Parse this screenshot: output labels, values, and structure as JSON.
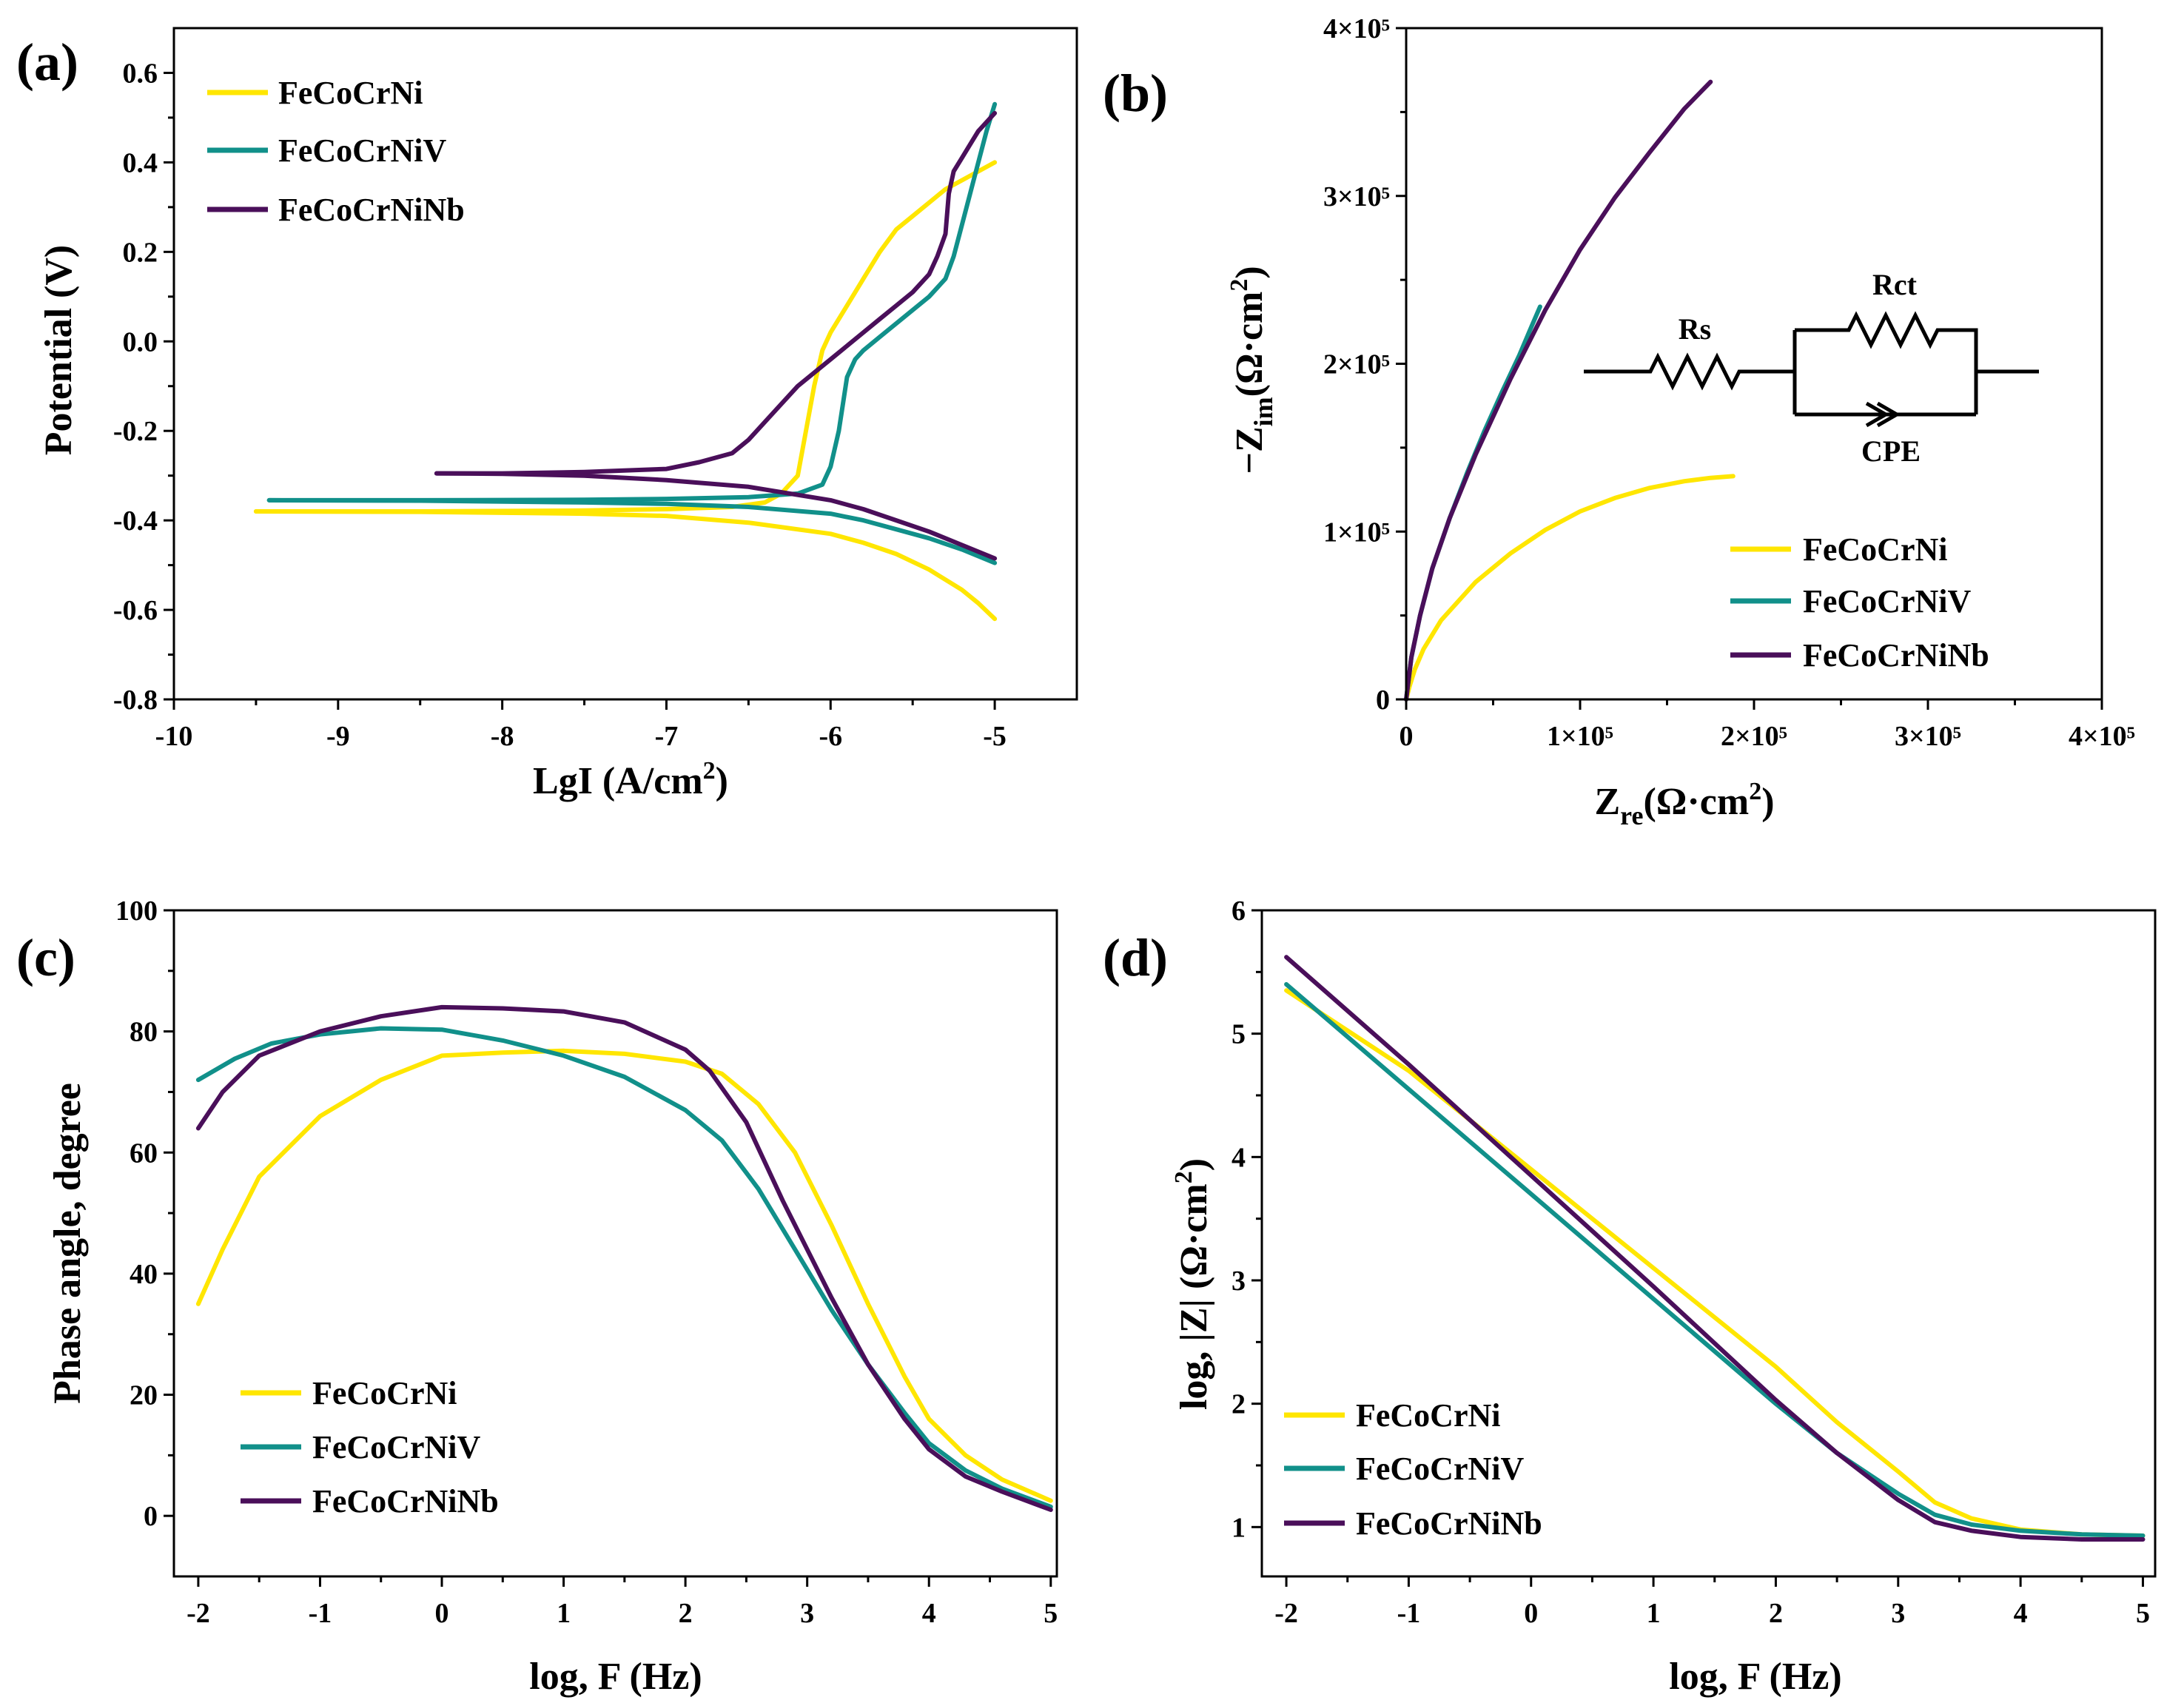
{
  "colors": {
    "FeCoCrNi": "#FFE600",
    "FeCoCrNiV": "#11908A",
    "FeCoCrNiNb": "#4A0F5A",
    "axis": "#000000"
  },
  "chart_data": [
    {
      "id": "a",
      "panel_label": "(a)",
      "type": "line",
      "xlabel": "LgI (A/cm²)",
      "ylabel": "Potential (V)",
      "xlim": [
        -10,
        -4.5
      ],
      "ylim": [
        -0.8,
        0.7
      ],
      "xticks": [
        -10,
        -9,
        -8,
        -7,
        -6,
        -5
      ],
      "yticks": [
        -0.8,
        -0.6,
        -0.4,
        -0.2,
        0.0,
        0.2,
        0.4,
        0.6
      ],
      "xticklabels": [
        "-10",
        "-9",
        "-8",
        "-7",
        "-6",
        "-5"
      ],
      "yticklabels": [
        "-0.8",
        "-0.6",
        "-0.4",
        "-0.2",
        "0.0",
        "0.2",
        "0.4",
        "0.6"
      ],
      "legend": "top-left",
      "series": [
        {
          "name": "FeCoCrNi",
          "x": [
            -9.5,
            -8.5,
            -7.5,
            -7.0,
            -6.6,
            -6.4,
            -6.3,
            -6.2,
            -6.15,
            -6.1,
            -6.05,
            -6.0,
            -5.9,
            -5.8,
            -5.7,
            -5.6,
            -5.5,
            -5.4,
            -5.3,
            -5.2,
            -5.1,
            -5.0
          ],
          "y": [
            -0.38,
            -0.38,
            -0.378,
            -0.375,
            -0.37,
            -0.36,
            -0.34,
            -0.3,
            -0.2,
            -0.1,
            -0.02,
            0.02,
            0.08,
            0.14,
            0.2,
            0.25,
            0.28,
            0.31,
            0.34,
            0.36,
            0.38,
            0.4
          ]
        },
        {
          "name": "FeCoCrNi",
          "x": [
            -9.5,
            -8.5,
            -7.5,
            -7.0,
            -6.5,
            -6.0,
            -5.8,
            -5.6,
            -5.4,
            -5.2,
            -5.1,
            -5.0
          ],
          "y": [
            -0.38,
            -0.381,
            -0.385,
            -0.39,
            -0.405,
            -0.43,
            -0.45,
            -0.475,
            -0.51,
            -0.555,
            -0.585,
            -0.62
          ]
        },
        {
          "name": "FeCoCrNiV",
          "x": [
            -9.42,
            -8.5,
            -7.5,
            -7.0,
            -6.5,
            -6.2,
            -6.05,
            -6.0,
            -5.95,
            -5.9,
            -5.85,
            -5.8,
            -5.7,
            -5.6,
            -5.5,
            -5.4,
            -5.35,
            -5.3,
            -5.25,
            -5.2,
            -5.15,
            -5.1,
            -5.05,
            -5.0
          ],
          "y": [
            -0.355,
            -0.355,
            -0.354,
            -0.352,
            -0.348,
            -0.34,
            -0.32,
            -0.28,
            -0.2,
            -0.08,
            -0.04,
            -0.02,
            0.01,
            0.04,
            0.07,
            0.1,
            0.12,
            0.14,
            0.19,
            0.26,
            0.33,
            0.4,
            0.47,
            0.53
          ]
        },
        {
          "name": "FeCoCrNiV",
          "x": [
            -9.42,
            -8.5,
            -7.5,
            -7.0,
            -6.5,
            -6.0,
            -5.8,
            -5.6,
            -5.4,
            -5.2,
            -5.0
          ],
          "y": [
            -0.355,
            -0.356,
            -0.36,
            -0.363,
            -0.37,
            -0.385,
            -0.4,
            -0.42,
            -0.44,
            -0.465,
            -0.495
          ]
        },
        {
          "name": "FeCoCrNiNb",
          "x": [
            -8.4,
            -8.0,
            -7.5,
            -7.0,
            -6.8,
            -6.6,
            -6.5,
            -6.4,
            -6.3,
            -6.2,
            -6.1,
            -6.0,
            -5.9,
            -5.8,
            -5.7,
            -5.6,
            -5.5,
            -5.4,
            -5.35,
            -5.3,
            -5.28,
            -5.25,
            -5.2,
            -5.15,
            -5.1,
            -5.0
          ],
          "y": [
            -0.295,
            -0.295,
            -0.292,
            -0.285,
            -0.27,
            -0.25,
            -0.22,
            -0.18,
            -0.14,
            -0.1,
            -0.07,
            -0.04,
            -0.01,
            0.02,
            0.05,
            0.08,
            0.11,
            0.15,
            0.19,
            0.24,
            0.33,
            0.38,
            0.41,
            0.44,
            0.47,
            0.51
          ]
        },
        {
          "name": "FeCoCrNiNb",
          "x": [
            -8.4,
            -8.0,
            -7.5,
            -7.0,
            -6.5,
            -6.0,
            -5.8,
            -5.6,
            -5.4,
            -5.2,
            -5.0
          ],
          "y": [
            -0.295,
            -0.296,
            -0.3,
            -0.31,
            -0.325,
            -0.355,
            -0.375,
            -0.4,
            -0.425,
            -0.455,
            -0.485
          ]
        }
      ]
    },
    {
      "id": "b",
      "panel_label": "(b)",
      "type": "line",
      "xlabel": "Zre(Ω·cm²)",
      "ylabel": "−Zim(Ω·cm²)",
      "xlim": [
        0,
        400000
      ],
      "ylim": [
        0,
        400000
      ],
      "xticks": [
        0,
        100000,
        200000,
        300000,
        400000
      ],
      "yticks": [
        0,
        100000,
        200000,
        300000,
        400000
      ],
      "xticklabels": [
        "0",
        "1×10⁵",
        "2×10⁵",
        "3×10⁵",
        "4×10⁵"
      ],
      "yticklabels": [
        "0",
        "1×10⁵",
        "2×10⁵",
        "3×10⁵",
        "4×10⁵"
      ],
      "legend": "bottom-right",
      "circuit": {
        "rs_label": "Rs",
        "rct_label": "Rct",
        "cpe_label": "CPE"
      },
      "series": [
        {
          "name": "FeCoCrNi",
          "x": [
            0,
            2000,
            5000,
            10000,
            20000,
            40000,
            60000,
            80000,
            100000,
            120000,
            140000,
            160000,
            175000,
            188000
          ],
          "y": [
            0,
            8000,
            18000,
            30000,
            47000,
            70000,
            87000,
            101000,
            112000,
            120000,
            126000,
            130000,
            132000,
            133000
          ]
        },
        {
          "name": "FeCoCrNiV",
          "x": [
            0,
            3000,
            8000,
            15000,
            25000,
            35000,
            45000,
            55000,
            65000,
            72000,
            77000
          ],
          "y": [
            0,
            25000,
            50000,
            78000,
            108000,
            135000,
            160000,
            183000,
            205000,
            222000,
            234000
          ]
        },
        {
          "name": "FeCoCrNiNb",
          "x": [
            0,
            3000,
            8000,
            15000,
            25000,
            40000,
            60000,
            80000,
            100000,
            120000,
            140000,
            160000,
            175000
          ],
          "y": [
            0,
            25000,
            50000,
            78000,
            108000,
            146000,
            191000,
            232000,
            268000,
            299000,
            326000,
            352000,
            368000
          ]
        }
      ]
    },
    {
      "id": "c",
      "panel_label": "(c)",
      "type": "line",
      "xlabel": "log, F (Hz)",
      "ylabel": "Phase angle, degree",
      "xlim": [
        -2.2,
        5.05
      ],
      "ylim": [
        -10,
        100
      ],
      "xticks": [
        -2,
        -1,
        0,
        1,
        2,
        3,
        4,
        5
      ],
      "yticks": [
        0,
        20,
        40,
        60,
        80,
        100
      ],
      "xticklabels": [
        "-2",
        "-1",
        "0",
        "1",
        "2",
        "3",
        "4",
        "5"
      ],
      "yticklabels": [
        "0",
        "20",
        "40",
        "60",
        "80",
        "100"
      ],
      "legend": "bottom-left",
      "series": [
        {
          "name": "FeCoCrNi",
          "x": [
            -2.0,
            -1.8,
            -1.5,
            -1.0,
            -0.5,
            0.0,
            0.5,
            1.0,
            1.5,
            2.0,
            2.3,
            2.6,
            2.9,
            3.2,
            3.5,
            3.8,
            4.0,
            4.3,
            4.6,
            5.0
          ],
          "y": [
            35,
            44,
            56,
            66,
            72,
            76,
            76.5,
            76.8,
            76.3,
            75,
            73,
            68,
            60,
            48,
            35,
            23,
            16,
            10,
            6,
            2.5
          ]
        },
        {
          "name": "FeCoCrNiV",
          "x": [
            -2.0,
            -1.7,
            -1.4,
            -1.0,
            -0.5,
            0.0,
            0.5,
            1.0,
            1.5,
            2.0,
            2.3,
            2.6,
            2.9,
            3.2,
            3.5,
            3.8,
            4.0,
            4.3,
            4.6,
            5.0
          ],
          "y": [
            72,
            75.5,
            78,
            79.5,
            80.5,
            80.3,
            78.5,
            76,
            72.5,
            67,
            62,
            54,
            44,
            34,
            25,
            17,
            12,
            7.5,
            4.5,
            1.5
          ]
        },
        {
          "name": "FeCoCrNiNb",
          "x": [
            -2.0,
            -1.8,
            -1.5,
            -1.0,
            -0.5,
            0.0,
            0.5,
            1.0,
            1.5,
            2.0,
            2.2,
            2.5,
            2.8,
            3.0,
            3.2,
            3.5,
            3.8,
            4.0,
            4.3,
            4.6,
            5.0
          ],
          "y": [
            64,
            70,
            76,
            80,
            82.5,
            84,
            83.8,
            83.3,
            81.5,
            77,
            73.5,
            65,
            52,
            44,
            36,
            25,
            16,
            11,
            6.5,
            4,
            1
          ]
        }
      ]
    },
    {
      "id": "d",
      "panel_label": "(d)",
      "type": "line",
      "xlabel": "log, F (Hz)",
      "ylabel": "log, |Z| (Ω·cm²)",
      "xlim": [
        -2.2,
        5.1
      ],
      "ylim": [
        0.6,
        6.0
      ],
      "xticks": [
        -2,
        -1,
        0,
        1,
        2,
        3,
        4,
        5
      ],
      "yticks": [
        1,
        2,
        3,
        4,
        5,
        6
      ],
      "xticklabels": [
        "-2",
        "-1",
        "0",
        "1",
        "2",
        "3",
        "4",
        "5"
      ],
      "yticklabels": [
        "1",
        "2",
        "3",
        "4",
        "5",
        "6"
      ],
      "legend": "bottom-left",
      "series": [
        {
          "name": "FeCoCrNi",
          "x": [
            -2.0,
            -1.0,
            0.0,
            1.0,
            2.0,
            2.5,
            3.0,
            3.3,
            3.6,
            4.0,
            4.5,
            5.0
          ],
          "y": [
            5.35,
            4.7,
            3.9,
            3.1,
            2.3,
            1.85,
            1.45,
            1.2,
            1.07,
            0.98,
            0.94,
            0.93
          ]
        },
        {
          "name": "FeCoCrNiV",
          "x": [
            -2.0,
            -1.0,
            0.0,
            1.0,
            2.0,
            2.5,
            3.0,
            3.3,
            3.6,
            4.0,
            4.5,
            5.0
          ],
          "y": [
            5.4,
            4.55,
            3.7,
            2.85,
            2.0,
            1.6,
            1.27,
            1.1,
            1.02,
            0.97,
            0.94,
            0.93
          ]
        },
        {
          "name": "FeCoCrNiNb",
          "x": [
            -2.0,
            -1.0,
            0.0,
            1.0,
            2.0,
            2.5,
            3.0,
            3.3,
            3.6,
            4.0,
            4.5,
            5.0
          ],
          "y": [
            5.62,
            4.75,
            3.85,
            2.95,
            2.03,
            1.6,
            1.22,
            1.04,
            0.97,
            0.92,
            0.9,
            0.9
          ]
        }
      ]
    }
  ]
}
